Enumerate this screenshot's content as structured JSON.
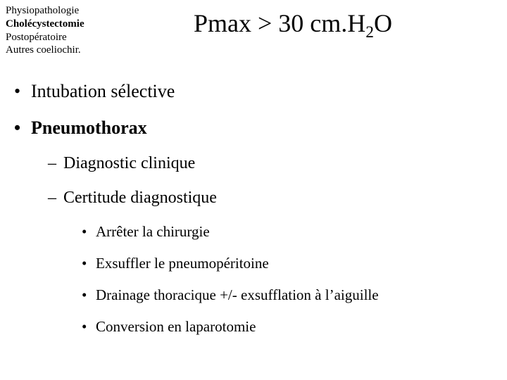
{
  "header": {
    "line1": "Physiopathologie",
    "line2": "Cholécystectomie",
    "line3": "Postopératoire",
    "line4": "Autres coeliochir."
  },
  "title": {
    "pmax": "Pmax > 30 cm.H",
    "sub2": "2",
    "o": "O"
  },
  "bullets": {
    "b1a": "Intubation sélective",
    "b1b": "Pneumothorax",
    "b2a": "Diagnostic clinique",
    "b2b": "Certitude diagnostique",
    "b3a": "Arrêter la chirurgie",
    "b3b": "Exsuffler le pneumopéritoine",
    "b3c": "Drainage thoracique +/- exsufflation à l’aiguille",
    "b3d": "Conversion en laparotomie"
  }
}
